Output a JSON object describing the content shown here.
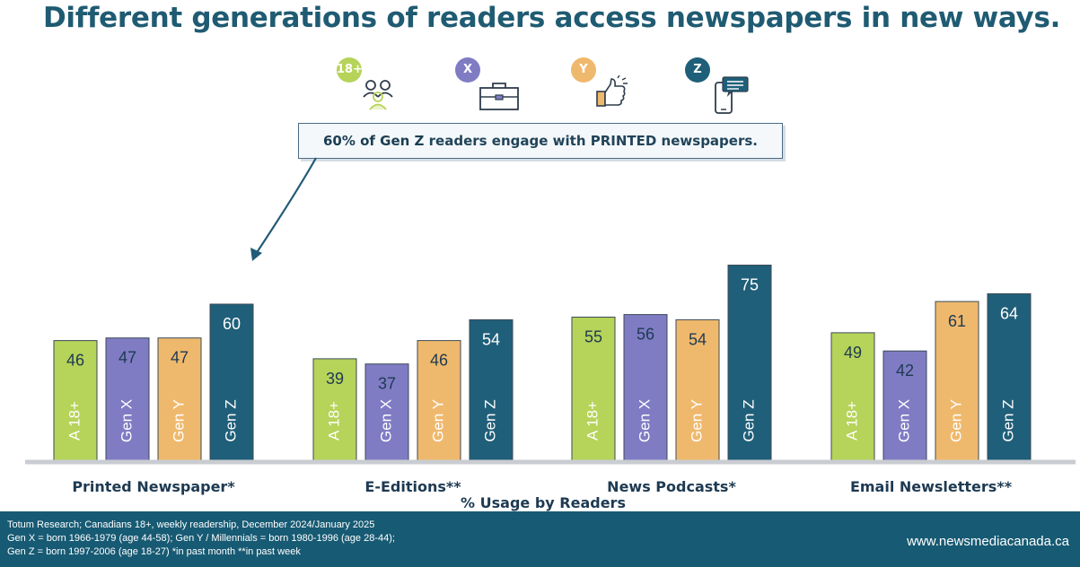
{
  "title": "Different generations of readers access newspapers in new ways.",
  "legend": [
    {
      "badge": "18+",
      "color": "#b6d35a",
      "icon": "people-icon"
    },
    {
      "badge": "X",
      "color": "#7f7cc4",
      "icon": "briefcase-icon"
    },
    {
      "badge": "Y",
      "color": "#efb96d",
      "icon": "thumbs-up-icon"
    },
    {
      "badge": "Z",
      "color": "#1f5f79",
      "icon": "phone-chat-icon"
    }
  ],
  "callout": {
    "prefix": "60% of Gen Z",
    "suffix": " readers engage with PRINTED newspapers."
  },
  "chart_data": {
    "type": "bar",
    "categories": [
      "Printed Newspaper*",
      "E-Editions**",
      "News Podcasts*",
      "Email Newsletters**"
    ],
    "series": [
      {
        "name": "A 18+",
        "color": "#b6d35a",
        "values": [
          46,
          39,
          55,
          49
        ]
      },
      {
        "name": "Gen X",
        "color": "#7f7cc4",
        "values": [
          47,
          37,
          56,
          42
        ]
      },
      {
        "name": "Gen Y",
        "color": "#efb96d",
        "values": [
          47,
          46,
          54,
          61
        ]
      },
      {
        "name": "Gen Z",
        "color": "#1f5f79",
        "values": [
          60,
          54,
          75,
          64
        ]
      }
    ],
    "xlabel": "% Usage by Readers",
    "ylim": [
      0,
      100
    ],
    "grid": false,
    "legend": "top-center"
  },
  "footer": {
    "notes": [
      "Totum Research; Canadians 18+, weekly readership, December 2024/January 2025",
      "Gen X = born 1966-1979 (age 44-58); Gen Y / Millennials = born 1980-1996 (age 28-44);",
      "Gen Z = born 1997-2006 (age 18-27) *in past month **in past week"
    ],
    "url": "www.newsmediacanada.ca"
  }
}
